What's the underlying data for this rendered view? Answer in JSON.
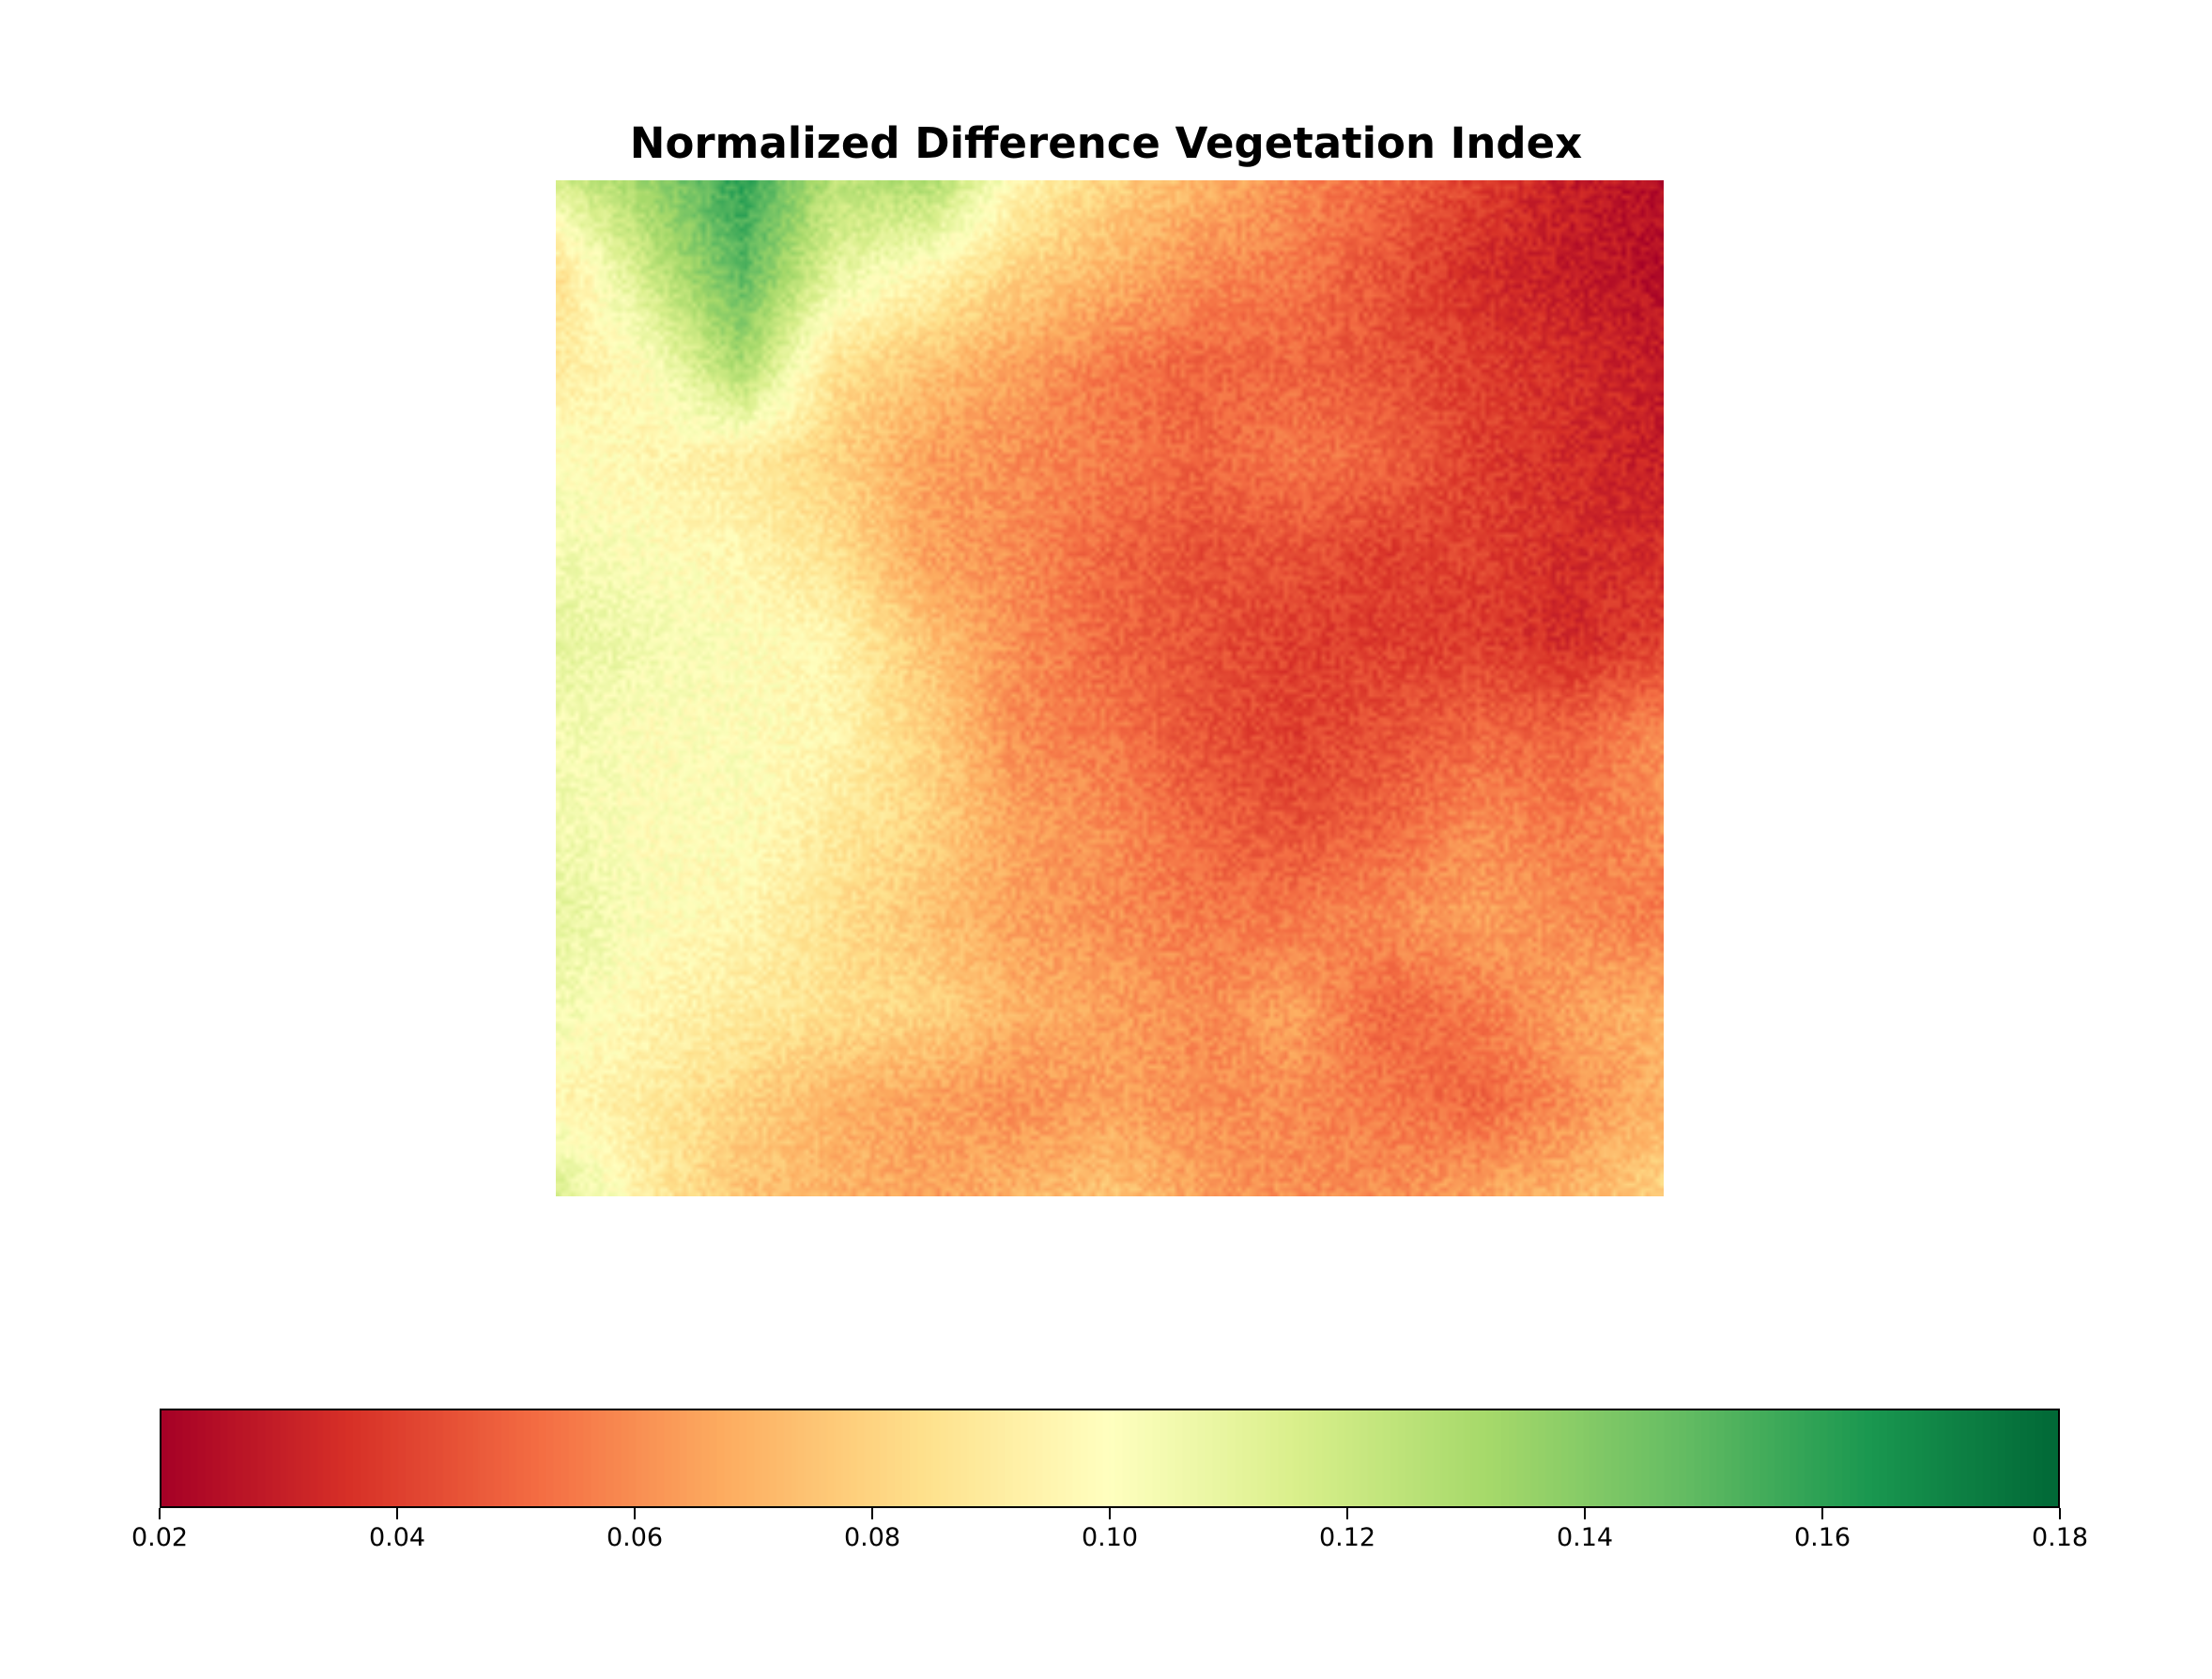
{
  "chart_data": {
    "type": "heatmap",
    "title": "Normalized Difference Vegetation Index",
    "colormap": [
      "#a50026",
      "#d73027",
      "#f46d43",
      "#fdae61",
      "#fee08b",
      "#ffffbf",
      "#d9ef8b",
      "#a6d96a",
      "#66bd63",
      "#1a9850",
      "#006837"
    ],
    "colorbar": {
      "orientation": "horizontal",
      "position": "bottom",
      "vmin": 0.02,
      "vmax": 0.18,
      "ticks": [
        "0.02",
        "0.04",
        "0.06",
        "0.08",
        "0.10",
        "0.12",
        "0.14",
        "0.16",
        "0.18"
      ]
    },
    "grid": {
      "rows": 12,
      "cols": 13,
      "values": [
        [
          0.115,
          0.135,
          0.16,
          0.125,
          0.13,
          0.095,
          0.08,
          0.07,
          0.06,
          0.05,
          0.04,
          0.03,
          0.025
        ],
        [
          0.085,
          0.12,
          0.15,
          0.11,
          0.095,
          0.08,
          0.07,
          0.06,
          0.055,
          0.045,
          0.035,
          0.03,
          0.025
        ],
        [
          0.09,
          0.1,
          0.13,
          0.085,
          0.075,
          0.065,
          0.055,
          0.05,
          0.05,
          0.045,
          0.04,
          0.035,
          0.03
        ],
        [
          0.1,
          0.095,
          0.09,
          0.08,
          0.065,
          0.06,
          0.055,
          0.05,
          0.055,
          0.05,
          0.04,
          0.035,
          0.03
        ],
        [
          0.105,
          0.1,
          0.095,
          0.085,
          0.065,
          0.06,
          0.05,
          0.045,
          0.045,
          0.04,
          0.04,
          0.035,
          0.035
        ],
        [
          0.11,
          0.105,
          0.1,
          0.095,
          0.075,
          0.06,
          0.05,
          0.045,
          0.04,
          0.04,
          0.04,
          0.035,
          0.04
        ],
        [
          0.105,
          0.1,
          0.1,
          0.095,
          0.08,
          0.06,
          0.055,
          0.045,
          0.04,
          0.045,
          0.05,
          0.05,
          0.06
        ],
        [
          0.105,
          0.1,
          0.1,
          0.09,
          0.08,
          0.065,
          0.06,
          0.05,
          0.045,
          0.05,
          0.06,
          0.055,
          0.06
        ],
        [
          0.11,
          0.1,
          0.095,
          0.085,
          0.075,
          0.065,
          0.06,
          0.055,
          0.055,
          0.06,
          0.065,
          0.06,
          0.055
        ],
        [
          0.105,
          0.095,
          0.09,
          0.085,
          0.08,
          0.07,
          0.065,
          0.06,
          0.065,
          0.05,
          0.055,
          0.065,
          0.07
        ],
        [
          0.095,
          0.09,
          0.08,
          0.07,
          0.065,
          0.06,
          0.065,
          0.06,
          0.06,
          0.055,
          0.05,
          0.06,
          0.07
        ],
        [
          0.115,
          0.09,
          0.075,
          0.07,
          0.065,
          0.07,
          0.075,
          0.065,
          0.06,
          0.06,
          0.065,
          0.07,
          0.08
        ]
      ]
    }
  }
}
